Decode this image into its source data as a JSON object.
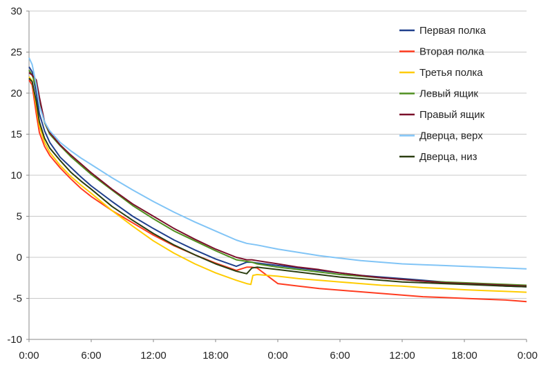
{
  "chart_data": {
    "type": "line",
    "title": "",
    "xlabel": "",
    "ylabel": "",
    "ylim": [
      -10,
      30
    ],
    "yticks": [
      30,
      25,
      20,
      15,
      10,
      5,
      0,
      -5,
      -10
    ],
    "xlim": [
      0,
      48
    ],
    "xticks": [
      {
        "t": 0,
        "label": "0:00"
      },
      {
        "t": 6,
        "label": "6:00"
      },
      {
        "t": 12,
        "label": "12:00"
      },
      {
        "t": 18,
        "label": "18:00"
      },
      {
        "t": 24,
        "label": "0:00"
      },
      {
        "t": 30,
        "label": "6:00"
      },
      {
        "t": 36,
        "label": "12:00"
      },
      {
        "t": 42,
        "label": "18:00"
      },
      {
        "t": 48,
        "label": "0:00"
      }
    ],
    "grid": "horizontal",
    "legend": "top-right",
    "series": [
      {
        "name": "Первая полка",
        "color": "#1f3f8c",
        "x": [
          0,
          0.3,
          0.7,
          1,
          1.5,
          2,
          3,
          4,
          5,
          6,
          8,
          10,
          12,
          14,
          16,
          18,
          20,
          21,
          21.5,
          22,
          24,
          26,
          28,
          30,
          32,
          34,
          36,
          38,
          40,
          42,
          44,
          46,
          48
        ],
        "y": [
          23.2,
          22.6,
          20,
          17.5,
          15.4,
          14,
          12.2,
          11,
          9.8,
          8.7,
          6.8,
          5,
          3.5,
          2.1,
          0.9,
          -0.2,
          -1.1,
          -0.6,
          -0.6,
          -0.7,
          -1.0,
          -1.3,
          -1.6,
          -1.9,
          -2.2,
          -2.4,
          -2.6,
          -2.8,
          -3.0,
          -3.2,
          -3.35,
          -3.5,
          -3.6
        ]
      },
      {
        "name": "Вторая полка",
        "color": "#ff3b1f",
        "x": [
          0,
          0.3,
          0.7,
          1,
          1.5,
          2,
          3,
          4,
          5,
          6,
          8,
          10,
          12,
          14,
          16,
          18,
          20,
          21,
          21.5,
          22,
          24,
          26,
          28,
          30,
          32,
          34,
          36,
          38,
          40,
          42,
          44,
          46,
          48
        ],
        "y": [
          21.6,
          21,
          17.5,
          15.2,
          13.5,
          12.4,
          10.9,
          9.6,
          8.4,
          7.4,
          5.7,
          4.2,
          2.7,
          1.4,
          0.3,
          -0.7,
          -1.6,
          -1.2,
          -1.2,
          -1.3,
          -3.2,
          -3.5,
          -3.8,
          -4.0,
          -4.2,
          -4.4,
          -4.6,
          -4.8,
          -4.9,
          -5.0,
          -5.1,
          -5.2,
          -5.4
        ]
      },
      {
        "name": "Третья полка",
        "color": "#ffcc00",
        "x": [
          0,
          0.3,
          0.7,
          1,
          1.5,
          2,
          3,
          4,
          5,
          6,
          8,
          10,
          12,
          14,
          16,
          18,
          20,
          21,
          21.4,
          21.6,
          22,
          24,
          26,
          28,
          30,
          32,
          34,
          36,
          38,
          40,
          42,
          44,
          46,
          48
        ],
        "y": [
          22,
          21.5,
          18.5,
          16,
          14,
          12.8,
          11.2,
          9.9,
          8.8,
          7.8,
          5.7,
          3.8,
          2.0,
          0.5,
          -0.8,
          -1.9,
          -2.8,
          -3.2,
          -3.3,
          -2.2,
          -2.1,
          -2.3,
          -2.6,
          -2.8,
          -3.0,
          -3.2,
          -3.4,
          -3.5,
          -3.7,
          -3.8,
          -3.95,
          -4.05,
          -4.15,
          -4.25
        ]
      },
      {
        "name": "Левый ящик",
        "color": "#4f8f1f",
        "x": [
          0,
          0.3,
          0.7,
          1,
          1.5,
          2,
          3,
          4,
          5,
          6,
          8,
          10,
          12,
          14,
          16,
          18,
          20,
          21,
          21.5,
          22,
          24,
          26,
          28,
          30,
          32,
          34,
          36,
          38,
          40,
          42,
          44,
          46,
          48
        ],
        "y": [
          22.8,
          22.2,
          20.8,
          18.8,
          16.4,
          15,
          13.6,
          12.3,
          11.2,
          10.1,
          8.2,
          6.3,
          4.7,
          3.2,
          2.0,
          0.8,
          -0.3,
          -0.5,
          -0.6,
          -0.8,
          -1.2,
          -1.5,
          -1.8,
          -2.1,
          -2.3,
          -2.5,
          -2.7,
          -2.9,
          -3.0,
          -3.1,
          -3.2,
          -3.3,
          -3.4
        ]
      },
      {
        "name": "Правый ящик",
        "color": "#7a0f2a",
        "x": [
          0,
          0.3,
          0.7,
          1,
          1.5,
          2,
          3,
          4,
          5,
          6,
          8,
          10,
          12,
          14,
          16,
          18,
          20,
          21,
          21.5,
          22,
          24,
          26,
          28,
          30,
          32,
          34,
          36,
          38,
          40,
          42,
          44,
          46,
          48
        ],
        "y": [
          22.5,
          22.2,
          21.6,
          19.5,
          16.5,
          15.2,
          13.7,
          12.5,
          11.4,
          10.3,
          8.3,
          6.5,
          5.0,
          3.5,
          2.2,
          1.0,
          0,
          -0.3,
          -0.3,
          -0.4,
          -0.8,
          -1.2,
          -1.5,
          -1.9,
          -2.2,
          -2.5,
          -2.7,
          -2.9,
          -3.1,
          -3.2,
          -3.3,
          -3.4,
          -3.5
        ]
      },
      {
        "name": "Дверца, верх",
        "color": "#80c4f6",
        "x": [
          0,
          0.3,
          0.7,
          1,
          1.5,
          2,
          3,
          4,
          5,
          6,
          8,
          10,
          12,
          14,
          16,
          18,
          20,
          21,
          22,
          24,
          26,
          28,
          30,
          32,
          34,
          36,
          38,
          40,
          42,
          44,
          46,
          48
        ],
        "y": [
          24.3,
          23.5,
          21,
          18.5,
          16.5,
          15.4,
          14.0,
          13.0,
          12.1,
          11.3,
          9.7,
          8.2,
          6.8,
          5.5,
          4.3,
          3.2,
          2.1,
          1.7,
          1.5,
          1.0,
          0.6,
          0.2,
          -0.1,
          -0.4,
          -0.6,
          -0.8,
          -0.9,
          -1.0,
          -1.1,
          -1.2,
          -1.3,
          -1.4
        ]
      },
      {
        "name": "Дверца, низ",
        "color": "#2b3d10",
        "x": [
          0,
          0.3,
          0.7,
          1,
          1.5,
          2,
          3,
          4,
          5,
          6,
          8,
          10,
          12,
          14,
          16,
          18,
          20,
          21,
          21.5,
          22,
          24,
          26,
          28,
          30,
          32,
          34,
          36,
          38,
          40,
          42,
          44,
          46,
          48
        ],
        "y": [
          21.8,
          21.4,
          19,
          16.5,
          14.5,
          13.3,
          11.8,
          10.4,
          9.3,
          8.3,
          6.2,
          4.5,
          2.9,
          1.5,
          0.3,
          -0.8,
          -1.7,
          -2.0,
          -1.3,
          -1.2,
          -1.5,
          -1.8,
          -2.1,
          -2.4,
          -2.6,
          -2.8,
          -3.0,
          -3.1,
          -3.2,
          -3.3,
          -3.4,
          -3.5,
          -3.6
        ]
      }
    ]
  }
}
